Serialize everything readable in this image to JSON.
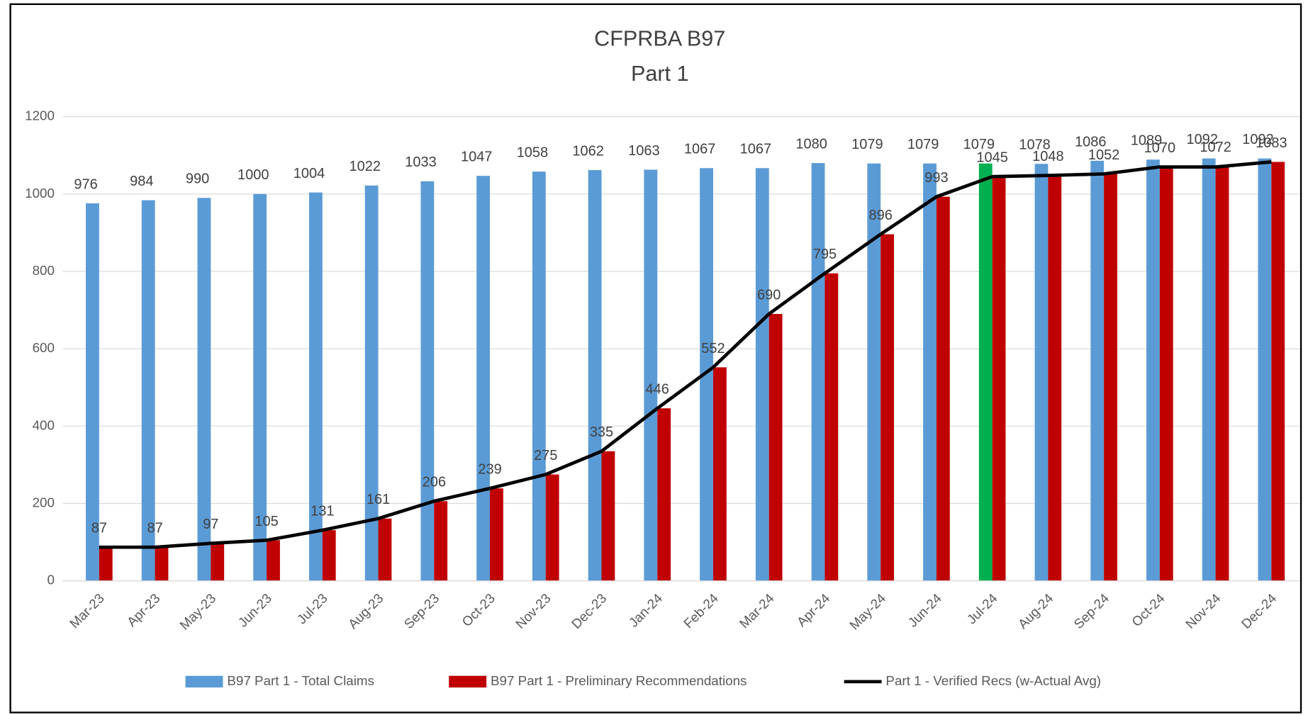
{
  "chart_data": {
    "type": "bar-line",
    "title": "CFPRBA B97",
    "subtitle": "Part 1",
    "categories": [
      "Mar-23",
      "Apr-23",
      "May-23",
      "Jun-23",
      "Jul-23",
      "Aug-23",
      "Sep-23",
      "Oct-23",
      "Nov-23",
      "Dec-23",
      "Jan-24",
      "Feb-24",
      "Mar-24",
      "Apr-24",
      "May-24",
      "Jun-24",
      "Jul-24",
      "Aug-24",
      "Sep-24",
      "Oct-24",
      "Nov-24",
      "Dec-24"
    ],
    "series": [
      {
        "name": "B97 Part 1 - Total Claims",
        "type": "bar",
        "color": "#5b9bd5",
        "highlight": {
          "index": 16,
          "color": "#00b050"
        },
        "values": [
          976,
          984,
          990,
          1000,
          1004,
          1022,
          1033,
          1047,
          1058,
          1062,
          1063,
          1067,
          1067,
          1080,
          1079,
          1079,
          1079,
          1078,
          1086,
          1089,
          1092,
          1092
        ]
      },
      {
        "name": "B97 Part 1 - Preliminary Recommendations",
        "type": "bar",
        "color": "#c00000",
        "values": [
          87,
          87,
          97,
          105,
          131,
          161,
          206,
          239,
          275,
          335,
          446,
          552,
          690,
          795,
          896,
          993,
          1045,
          1048,
          1052,
          1070,
          1072,
          1083
        ]
      },
      {
        "name": "Part 1 - Verified Recs (w-Actual Avg)",
        "type": "line",
        "color": "#000000",
        "values": [
          87,
          87,
          97,
          105,
          131,
          161,
          206,
          239,
          275,
          335,
          446,
          552,
          690,
          795,
          896,
          993,
          1045,
          1048,
          1052,
          1070,
          1070,
          1083
        ]
      }
    ],
    "ylim": [
      0,
      1200
    ],
    "yticks": [
      0,
      200,
      400,
      600,
      800,
      1000,
      1200
    ],
    "grid": true,
    "legend": "bottom"
  }
}
